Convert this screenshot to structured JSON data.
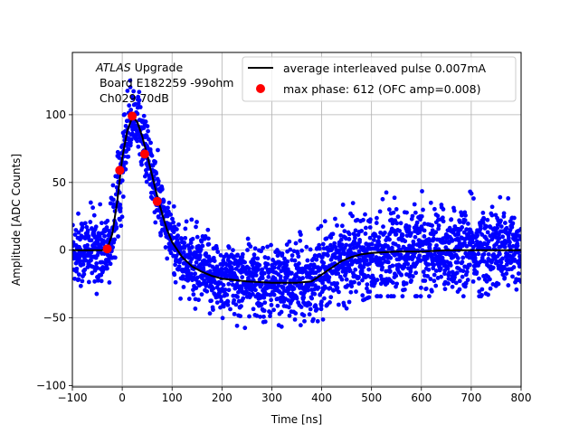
{
  "chart_data": {
    "type": "scatter",
    "xlabel": "Time [ns]",
    "ylabel": "Amplitude [ADC Counts]",
    "xlim": [
      -100,
      800
    ],
    "ylim": [
      -101,
      146
    ],
    "xticks": [
      -100,
      0,
      100,
      200,
      300,
      400,
      500,
      600,
      700,
      800
    ],
    "yticks": [
      -100,
      -50,
      0,
      50,
      100
    ],
    "grid": true,
    "legend_position": "upper-right",
    "annotation": {
      "line1_italic": "ATLAS",
      "line1_rest": " Upgrade",
      "line2": " Board E182259 -99ohm",
      "line3": " Ch029 70dB"
    },
    "series": [
      {
        "name": "",
        "kind": "scatter",
        "color": "#0000ff",
        "description": "interleaved samples scattered about the average pulse with noise of roughly ±30 ADC counts",
        "envelope_x": [
          -100,
          -40,
          -20,
          0,
          10,
          20,
          30,
          50,
          75,
          100,
          150,
          200,
          300,
          380,
          420,
          470,
          500,
          600,
          700,
          800
        ],
        "envelope_low": [
          -35,
          -35,
          -28,
          20,
          65,
          90,
          85,
          45,
          5,
          -25,
          -45,
          -52,
          -55,
          -50,
          -45,
          -35,
          -30,
          -30,
          -30,
          -30
        ],
        "envelope_high": [
          30,
          32,
          40,
          90,
          125,
          142,
          130,
          100,
          65,
          30,
          20,
          15,
          10,
          15,
          25,
          35,
          38,
          40,
          40,
          40
        ]
      },
      {
        "name": "average interleaved pulse 0.007mA",
        "kind": "line",
        "color": "#000000",
        "x": [
          -100,
          -60,
          -40,
          -30,
          -20,
          -10,
          0,
          10,
          20,
          30,
          40,
          50,
          60,
          70,
          80,
          90,
          100,
          120,
          140,
          160,
          180,
          200,
          250,
          300,
          350,
          380,
          400,
          420,
          440,
          460,
          480,
          500,
          550,
          600,
          650,
          700,
          750,
          800
        ],
        "y": [
          0,
          0,
          0,
          1,
          12,
          36,
          68,
          88,
          98,
          95,
          84,
          70,
          55,
          40,
          27,
          15,
          6,
          -5,
          -12,
          -16,
          -19,
          -21,
          -23,
          -24,
          -24,
          -23,
          -18,
          -13,
          -8,
          -5,
          -3,
          -2,
          -1,
          -1,
          0,
          0,
          0,
          0
        ]
      },
      {
        "name": "max phase: 612 (OFC amp=0.008)",
        "kind": "scatter",
        "color": "#ff0000",
        "x": [
          -30,
          -5,
          20,
          45,
          70
        ],
        "y": [
          1,
          59,
          99,
          71,
          36
        ]
      }
    ]
  }
}
